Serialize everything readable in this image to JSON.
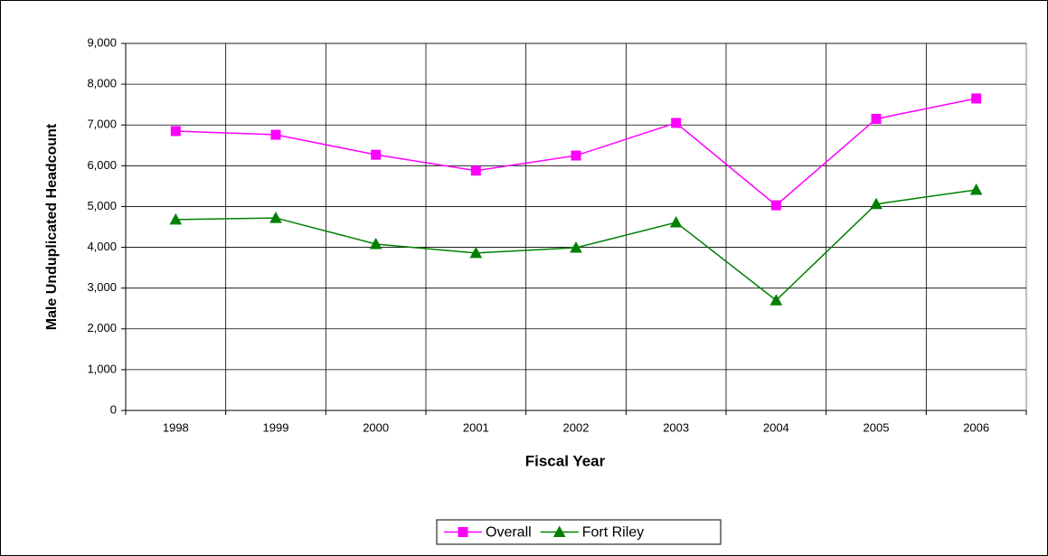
{
  "chart_data": {
    "type": "line",
    "x_label": "Fiscal Year",
    "y_label": "Male Unduplicated Headcount",
    "categories": [
      "1998",
      "1999",
      "2000",
      "2001",
      "2002",
      "2003",
      "2004",
      "2005",
      "2006"
    ],
    "series": [
      {
        "name": "Overall",
        "color": "#ff00ff",
        "marker": "square",
        "values": [
          6850,
          6760,
          6270,
          5880,
          6250,
          7050,
          5030,
          7150,
          7650
        ]
      },
      {
        "name": "Fort Riley",
        "color": "#008000",
        "marker": "triangle",
        "values": [
          4680,
          4720,
          4080,
          3860,
          3990,
          4610,
          2700,
          5060,
          5410
        ]
      }
    ],
    "ylim": [
      0,
      9000
    ],
    "yticks": [
      0,
      {
        "value": 1000,
        "label": "1,000"
      },
      {
        "value": 2000,
        "label": "2,000"
      },
      {
        "value": 3000,
        "label": "3,000"
      },
      {
        "value": 4000,
        "label": "4,000"
      },
      {
        "value": 5000,
        "label": "5,000"
      },
      {
        "value": 6000,
        "label": "6,000"
      },
      {
        "value": 7000,
        "label": "7,000"
      },
      {
        "value": 8000,
        "label": "8,000"
      },
      {
        "value": 9000,
        "label": "9,000"
      }
    ],
    "grid": true,
    "legend": "bottom"
  }
}
